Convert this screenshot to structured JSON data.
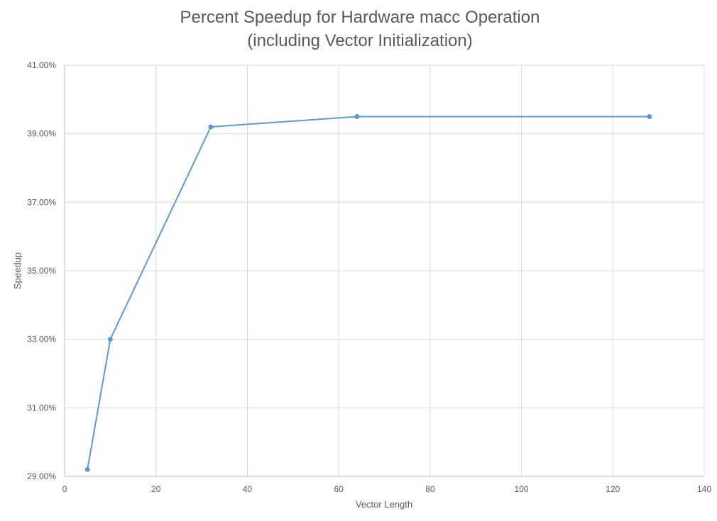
{
  "chart_data": {
    "type": "line",
    "title_line_1": "Percent Speedup for Hardware macc Operation",
    "title_line_2": "(including Vector Initialization)",
    "xlabel": "Vector Length",
    "ylabel": "Speedup",
    "xlim": [
      0,
      140
    ],
    "ylim": [
      29,
      41
    ],
    "x_ticks": [
      0,
      20,
      40,
      60,
      80,
      100,
      120,
      140
    ],
    "y_ticks": [
      29,
      31,
      33,
      35,
      37,
      39,
      41
    ],
    "y_tick_labels": [
      "29.00%",
      "31.00%",
      "33.00%",
      "35.00%",
      "37.00%",
      "39.00%",
      "41.00%"
    ],
    "grid": true,
    "series": [
      {
        "color": "#5b9bd5",
        "x": [
          5,
          10,
          32,
          64,
          128
        ],
        "y": [
          29.2,
          33.0,
          39.2,
          39.5,
          39.5
        ]
      }
    ]
  }
}
